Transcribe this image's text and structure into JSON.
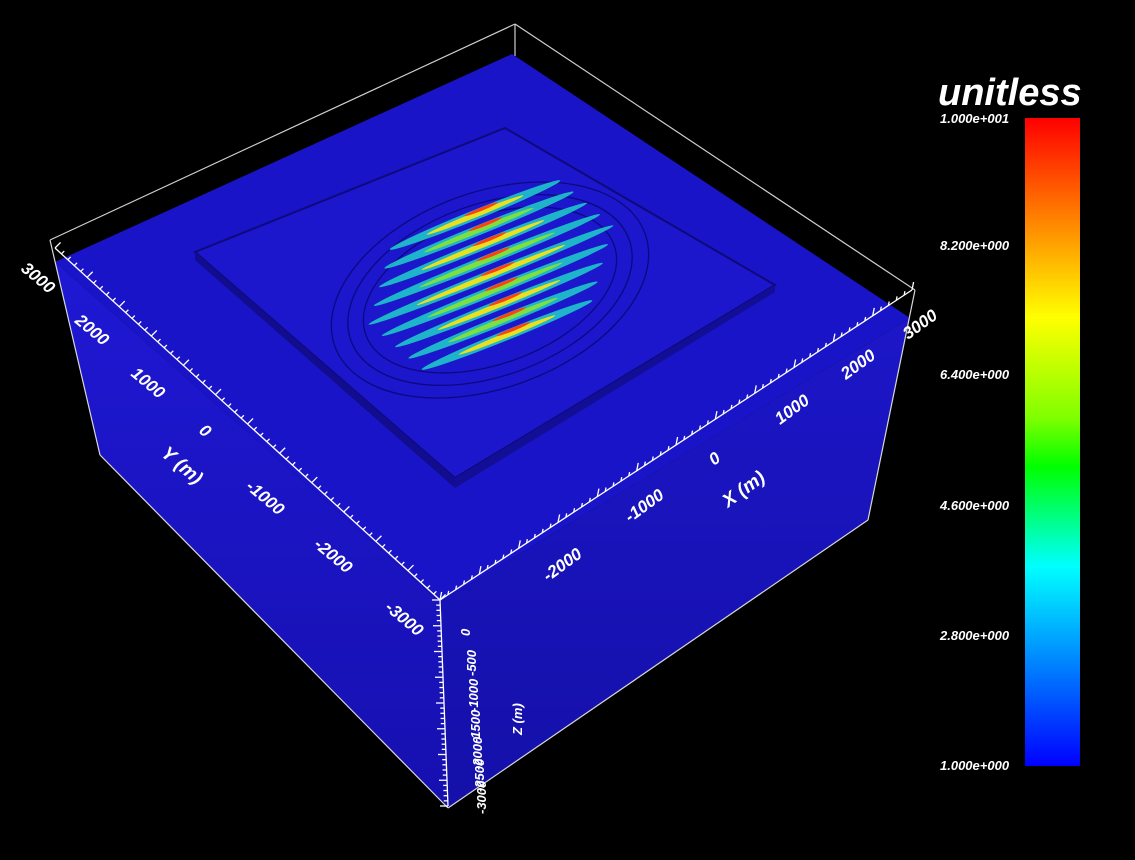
{
  "colorbar": {
    "title": "unitless",
    "labels": [
      "1.000e+001",
      "8.200e+000",
      "6.400e+000",
      "4.600e+000",
      "2.800e+000",
      "1.000e+000"
    ],
    "colors": [
      "#ff0000",
      "#ff4000",
      "#ff8000",
      "#ffc000",
      "#ffff00",
      "#c0ff00",
      "#80ff00",
      "#00ff00",
      "#00ff80",
      "#00ffff",
      "#00c0ff",
      "#0080ff",
      "#0040ff",
      "#0000ff"
    ]
  },
  "axes": {
    "x": {
      "label": "X (m)",
      "ticks": [
        "-2000",
        "-1000",
        "0",
        "1000",
        "2000",
        "3000"
      ]
    },
    "y": {
      "label": "Y (m)",
      "ticks": [
        "3000",
        "2000",
        "1000",
        "0",
        "-1000",
        "-2000",
        "-3000"
      ]
    },
    "z": {
      "label": "Z (m)",
      "ticks": [
        "0",
        "-500",
        "-1000",
        "-1500",
        "-2000",
        "-2500",
        "-3000"
      ]
    }
  },
  "scene": {
    "box_top_color": "#1a14c8",
    "box_side_color": "#1a14bc",
    "stripe_count": 9
  }
}
